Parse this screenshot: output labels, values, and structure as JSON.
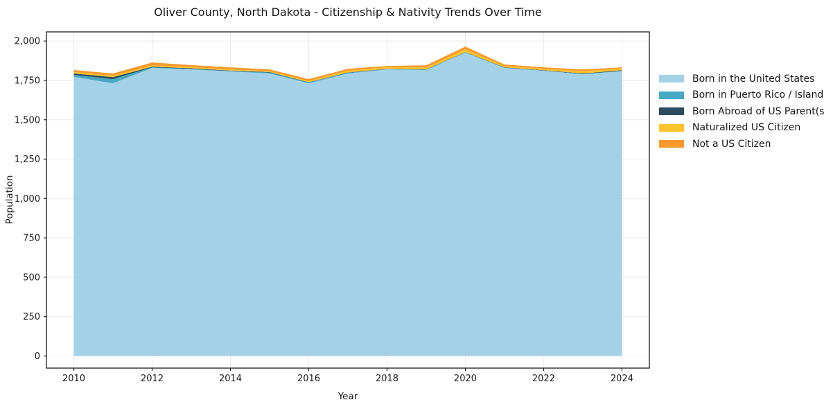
{
  "chart_data": {
    "type": "area",
    "stacked": true,
    "title": "Oliver County, North Dakota - Citizenship & Nativity Trends Over Time",
    "xlabel": "Year",
    "ylabel": "Population",
    "x": [
      2010,
      2011,
      2012,
      2013,
      2014,
      2015,
      2016,
      2017,
      2018,
      2019,
      2020,
      2021,
      2022,
      2023,
      2024
    ],
    "series": [
      {
        "name": "Born in the United States",
        "color": "#A3D2E8",
        "values": [
          1772,
          1732,
          1829,
          1820,
          1807,
          1794,
          1732,
          1794,
          1820,
          1816,
          1926,
          1829,
          1811,
          1789,
          1809
        ]
      },
      {
        "name": "Born in Puerto Rico / Islands",
        "color": "#46A8C2",
        "values": [
          13,
          26,
          4,
          3,
          3,
          6,
          5,
          4,
          2,
          2,
          2,
          2,
          2,
          2,
          2
        ]
      },
      {
        "name": "Born Abroad of US Parent(s)",
        "color": "#2D4B5E",
        "values": [
          9,
          13,
          4,
          4,
          3,
          3,
          2,
          2,
          2,
          2,
          2,
          2,
          2,
          3,
          4
        ]
      },
      {
        "name": "Naturalized US Citizen",
        "color": "#FDC22D",
        "values": [
          9,
          9,
          9,
          8,
          7,
          6,
          7,
          12,
          10,
          12,
          18,
          8,
          8,
          14,
          10
        ]
      },
      {
        "name": "Not a US Citizen",
        "color": "#F8992B",
        "values": [
          13,
          14,
          18,
          12,
          13,
          11,
          12,
          12,
          8,
          14,
          17,
          10,
          10,
          12,
          8
        ]
      }
    ],
    "totals": [
      1816,
      1794,
      1864,
      1847,
      1833,
      1820,
      1758,
      1824,
      1842,
      1846,
      1965,
      1851,
      1833,
      1820,
      1833
    ],
    "xticks": [
      2010,
      2012,
      2014,
      2016,
      2018,
      2020,
      2022,
      2024
    ],
    "xtick_labels": [
      "2010",
      "2012",
      "2014",
      "2016",
      "2018",
      "2020",
      "2022",
      "2024"
    ],
    "yticks": [
      0,
      250,
      500,
      750,
      1000,
      1250,
      1500,
      1750,
      2000
    ],
    "ytick_labels": [
      "0",
      "250",
      "500",
      "750",
      "1,000",
      "1,250",
      "1,500",
      "1,750",
      "2,000"
    ],
    "xlim": [
      2009.3,
      2024.7
    ],
    "ylim": [
      -77,
      2058
    ],
    "grid": true,
    "grid_color": "#eaeaea",
    "frame_color": "#1a1a1a",
    "legend_position": "right"
  }
}
